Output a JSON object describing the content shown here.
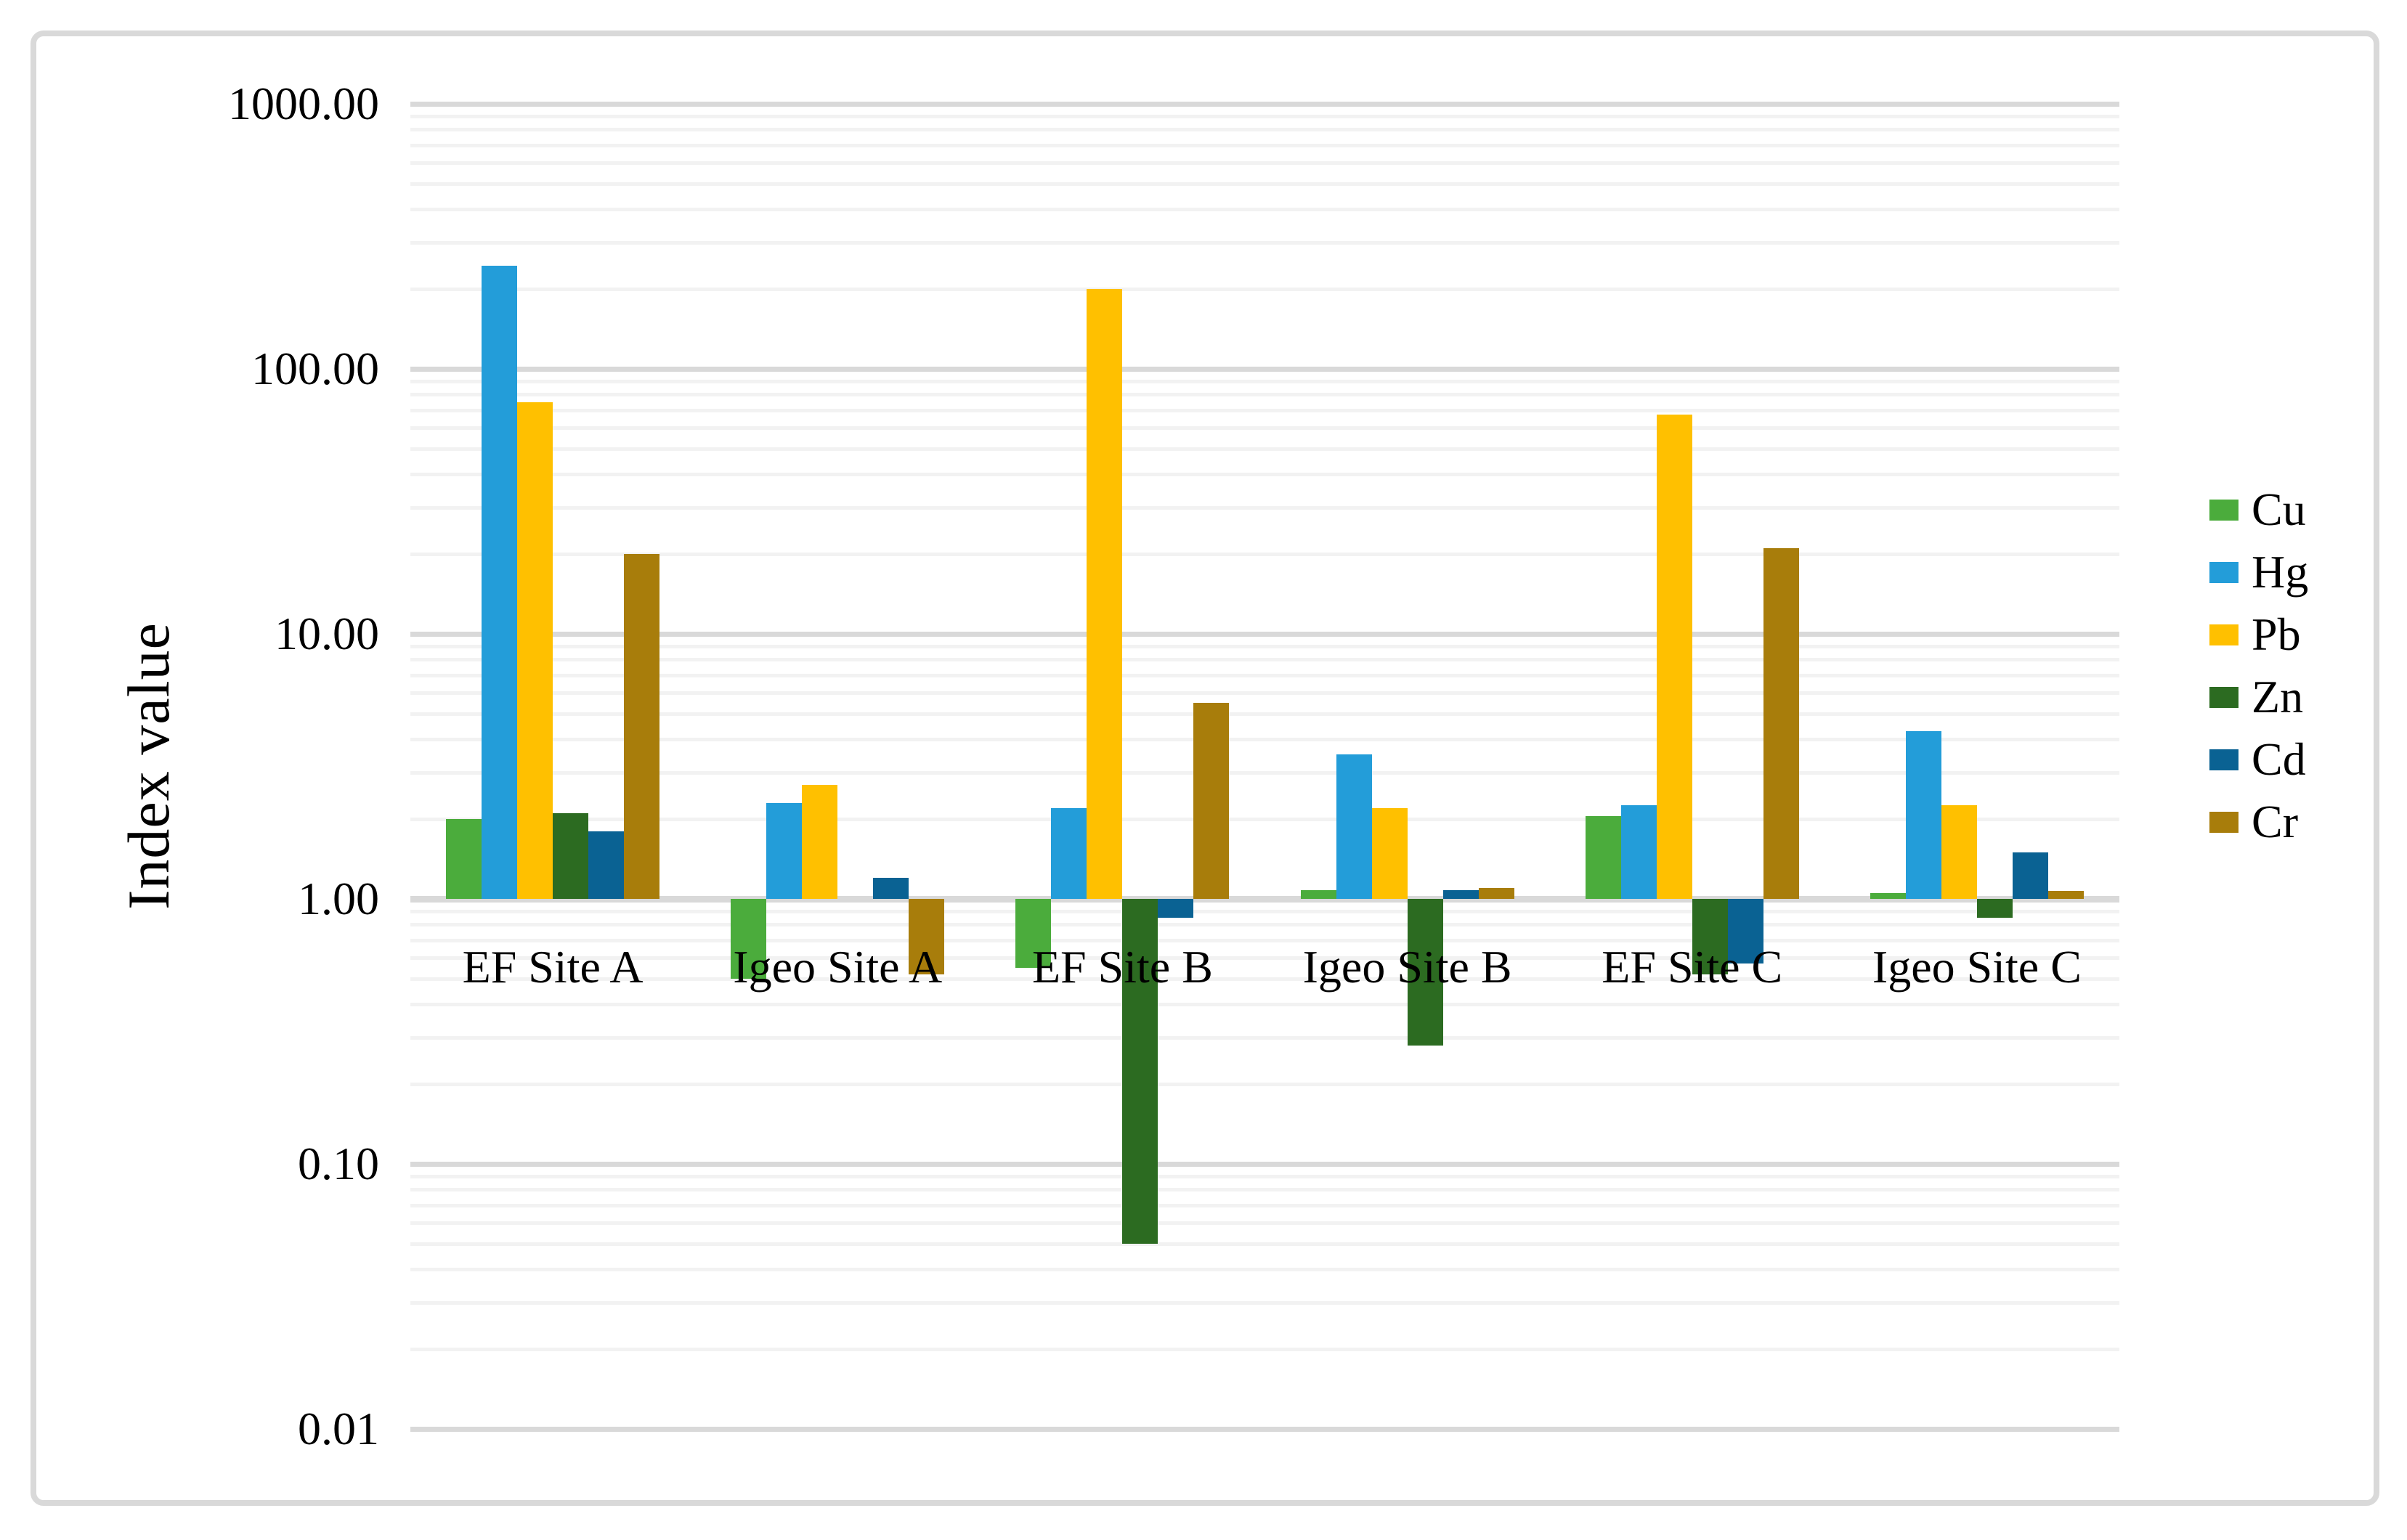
{
  "chart_data": {
    "type": "bar",
    "title": "",
    "ylabel": "Index value",
    "xlabel": "",
    "scale": "log",
    "ylim": [
      0.01,
      1000
    ],
    "baseline": 1,
    "grid": "horizontal, log major + minor gridlines",
    "legend_position": "right",
    "yticks": [
      {
        "value": 1000,
        "label": "1000.00"
      },
      {
        "value": 100,
        "label": "100.00"
      },
      {
        "value": 10,
        "label": "10.00"
      },
      {
        "value": 1,
        "label": "1.00"
      },
      {
        "value": 0.1,
        "label": "0.10"
      },
      {
        "value": 0.01,
        "label": "0.01"
      }
    ],
    "categories": [
      "EF Site A",
      "Igeo Site A",
      "EF Site B",
      "Igeo Site B",
      "EF Site C",
      "Igeo Site C"
    ],
    "series": [
      {
        "name": "Cu",
        "color": "#4BAC3C",
        "values": [
          2.0,
          0.5,
          0.55,
          1.08,
          2.05,
          1.05
        ]
      },
      {
        "name": "Hg",
        "color": "#239DD9",
        "values": [
          245,
          2.3,
          2.2,
          3.5,
          2.25,
          4.3
        ]
      },
      {
        "name": "Pb",
        "color": "#FFC000",
        "values": [
          75,
          2.7,
          200,
          2.2,
          67,
          2.25
        ]
      },
      {
        "name": "Zn",
        "color": "#2C6B21",
        "values": [
          2.1,
          null,
          0.05,
          0.28,
          0.52,
          0.85
        ]
      },
      {
        "name": "Cd",
        "color": "#0A6293",
        "values": [
          1.8,
          1.2,
          0.85,
          1.08,
          0.57,
          1.5
        ]
      },
      {
        "name": "Cr",
        "color": "#A87D0B",
        "values": [
          20,
          0.52,
          5.5,
          1.1,
          21,
          1.07
        ]
      }
    ]
  },
  "styles": {
    "background": "#FFFFFF",
    "chart_border_color": "#D9D9D9",
    "major_gridline_color": "#D9D9D9",
    "minor_gridline_color": "#F2F2F2",
    "text_color": "#000000"
  }
}
